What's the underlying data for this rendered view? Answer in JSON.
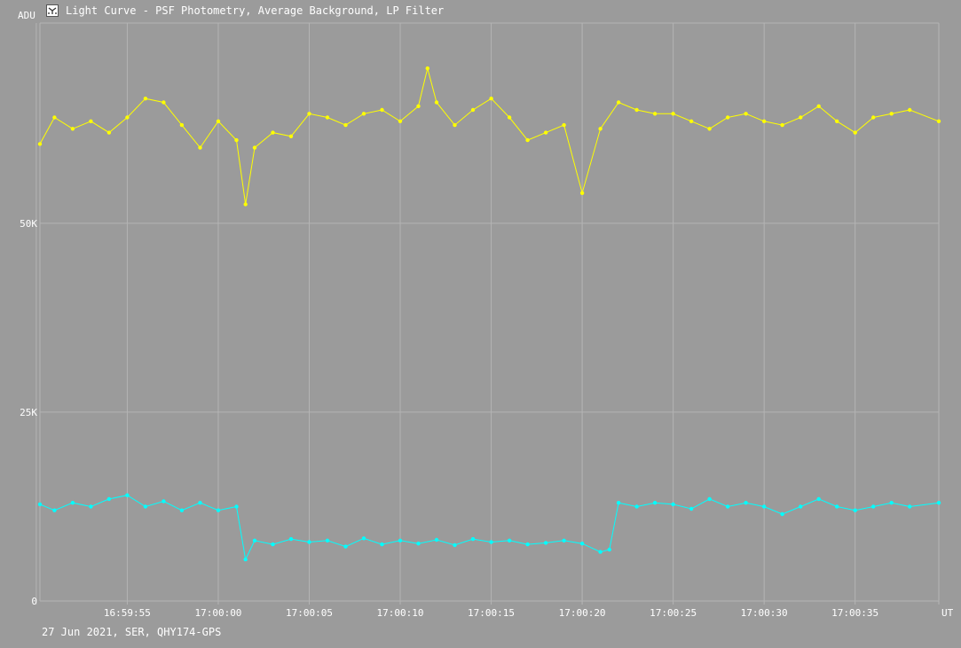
{
  "window": {
    "title": "Light Curve - PSF Photometry, Average Background, LP Filter",
    "icon": "light-curve-app-icon"
  },
  "footer": {
    "info": "27 Jun 2021, SER, QHY174-GPS"
  },
  "colors": {
    "background": "#9b9b9b",
    "grid": "#b4b4b4",
    "text": "#ffffff",
    "target_series": "#ffff00",
    "comparison_series": "#00ffff"
  },
  "chart_data": {
    "type": "line",
    "ylabel": "ADU",
    "xlabel": "UT",
    "ylim": [
      0,
      76500
    ],
    "xlim": [
      "16:59:50.2",
      "17:00:39.6"
    ],
    "grid": true,
    "markers": true,
    "y_ticks": [
      {
        "value": 0,
        "label": "0"
      },
      {
        "value": 25000,
        "label": "25K"
      },
      {
        "value": 50000,
        "label": "50K"
      }
    ],
    "x_ticks": [
      {
        "value": "16:59:50",
        "label": ""
      },
      {
        "value": "16:59:55",
        "label": "16:59:55"
      },
      {
        "value": "17:00:00",
        "label": "17:00:00"
      },
      {
        "value": "17:00:05",
        "label": "17:00:05"
      },
      {
        "value": "17:00:10",
        "label": "17:00:10"
      },
      {
        "value": "17:00:15",
        "label": "17:00:15"
      },
      {
        "value": "17:00:20",
        "label": "17:00:20"
      },
      {
        "value": "17:00:25",
        "label": "17:00:25"
      },
      {
        "value": "17:00:30",
        "label": "17:00:30"
      },
      {
        "value": "17:00:35",
        "label": "17:00:35"
      },
      {
        "value": "17:00:39.6",
        "label": ""
      }
    ],
    "series": [
      {
        "points": [
          [
            "16:59:50.2",
            60500
          ],
          [
            "16:59:51.0",
            64000
          ],
          [
            "16:59:52.0",
            62500
          ],
          [
            "16:59:53.0",
            63500
          ],
          [
            "16:59:54.0",
            62000
          ],
          [
            "16:59:55.0",
            64000
          ],
          [
            "16:59:56.0",
            66500
          ],
          [
            "16:59:57.0",
            66000
          ],
          [
            "16:59:58.0",
            63000
          ],
          [
            "16:59:59.0",
            60000
          ],
          [
            "17:00:00.0",
            63500
          ],
          [
            "17:00:01.0",
            61000
          ],
          [
            "17:00:01.5",
            52500
          ],
          [
            "17:00:02.0",
            60000
          ],
          [
            "17:00:03.0",
            62000
          ],
          [
            "17:00:04.0",
            61500
          ],
          [
            "17:00:05.0",
            64500
          ],
          [
            "17:00:06.0",
            64000
          ],
          [
            "17:00:07.0",
            63000
          ],
          [
            "17:00:08.0",
            64500
          ],
          [
            "17:00:09.0",
            65000
          ],
          [
            "17:00:10.0",
            63500
          ],
          [
            "17:00:11.0",
            65500
          ],
          [
            "17:00:11.5",
            70500
          ],
          [
            "17:00:12.0",
            66000
          ],
          [
            "17:00:13.0",
            63000
          ],
          [
            "17:00:14.0",
            65000
          ],
          [
            "17:00:15.0",
            66500
          ],
          [
            "17:00:16.0",
            64000
          ],
          [
            "17:00:17.0",
            61000
          ],
          [
            "17:00:18.0",
            62000
          ],
          [
            "17:00:19.0",
            63000
          ],
          [
            "17:00:20.0",
            54000
          ],
          [
            "17:00:21.0",
            62500
          ],
          [
            "17:00:22.0",
            66000
          ],
          [
            "17:00:23.0",
            65000
          ],
          [
            "17:00:24.0",
            64500
          ],
          [
            "17:00:25.0",
            64500
          ],
          [
            "17:00:26.0",
            63500
          ],
          [
            "17:00:27.0",
            62500
          ],
          [
            "17:00:28.0",
            64000
          ],
          [
            "17:00:29.0",
            64500
          ],
          [
            "17:00:30.0",
            63500
          ],
          [
            "17:00:31.0",
            63000
          ],
          [
            "17:00:32.0",
            64000
          ],
          [
            "17:00:33.0",
            65500
          ],
          [
            "17:00:34.0",
            63500
          ],
          [
            "17:00:35.0",
            62000
          ],
          [
            "17:00:36.0",
            64000
          ],
          [
            "17:00:37.0",
            64500
          ],
          [
            "17:00:38.0",
            65000
          ],
          [
            "17:00:39.6",
            63500
          ]
        ]
      },
      {
        "points": [
          [
            "16:59:50.2",
            12800
          ],
          [
            "16:59:51.0",
            12000
          ],
          [
            "16:59:52.0",
            13000
          ],
          [
            "16:59:53.0",
            12500
          ],
          [
            "16:59:54.0",
            13500
          ],
          [
            "16:59:55.0",
            14000
          ],
          [
            "16:59:56.0",
            12500
          ],
          [
            "16:59:57.0",
            13200
          ],
          [
            "16:59:58.0",
            12000
          ],
          [
            "16:59:59.0",
            13000
          ],
          [
            "17:00:00.0",
            12000
          ],
          [
            "17:00:01.0",
            12500
          ],
          [
            "17:00:01.5",
            5500
          ],
          [
            "17:00:02.0",
            8000
          ],
          [
            "17:00:03.0",
            7500
          ],
          [
            "17:00:04.0",
            8200
          ],
          [
            "17:00:05.0",
            7800
          ],
          [
            "17:00:06.0",
            8000
          ],
          [
            "17:00:07.0",
            7200
          ],
          [
            "17:00:08.0",
            8300
          ],
          [
            "17:00:09.0",
            7500
          ],
          [
            "17:00:10.0",
            8000
          ],
          [
            "17:00:11.0",
            7600
          ],
          [
            "17:00:12.0",
            8100
          ],
          [
            "17:00:13.0",
            7400
          ],
          [
            "17:00:14.0",
            8200
          ],
          [
            "17:00:15.0",
            7800
          ],
          [
            "17:00:16.0",
            8000
          ],
          [
            "17:00:17.0",
            7500
          ],
          [
            "17:00:18.0",
            7700
          ],
          [
            "17:00:19.0",
            8000
          ],
          [
            "17:00:20.0",
            7600
          ],
          [
            "17:00:21.0",
            6500
          ],
          [
            "17:00:21.5",
            6800
          ],
          [
            "17:00:22.0",
            13000
          ],
          [
            "17:00:23.0",
            12500
          ],
          [
            "17:00:24.0",
            13000
          ],
          [
            "17:00:25.0",
            12800
          ],
          [
            "17:00:26.0",
            12200
          ],
          [
            "17:00:27.0",
            13500
          ],
          [
            "17:00:28.0",
            12500
          ],
          [
            "17:00:29.0",
            13000
          ],
          [
            "17:00:30.0",
            12500
          ],
          [
            "17:00:31.0",
            11500
          ],
          [
            "17:00:32.0",
            12500
          ],
          [
            "17:00:33.0",
            13500
          ],
          [
            "17:00:34.0",
            12500
          ],
          [
            "17:00:35.0",
            12000
          ],
          [
            "17:00:36.0",
            12500
          ],
          [
            "17:00:37.0",
            13000
          ],
          [
            "17:00:38.0",
            12500
          ],
          [
            "17:00:39.6",
            13000
          ]
        ]
      }
    ]
  }
}
